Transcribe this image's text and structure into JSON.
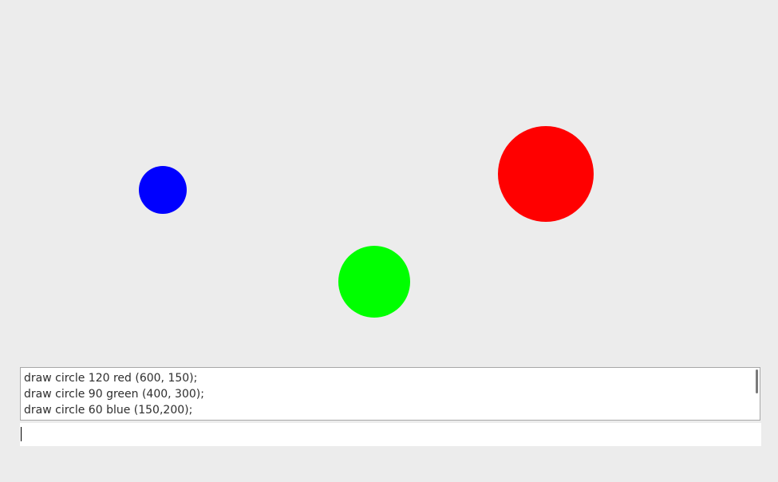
{
  "log": {
    "lines": [
      "draw circle 120 red (600, 150);",
      "draw circle 90 green (400, 300);",
      "draw circle 60 blue (150,200);"
    ]
  }
}
